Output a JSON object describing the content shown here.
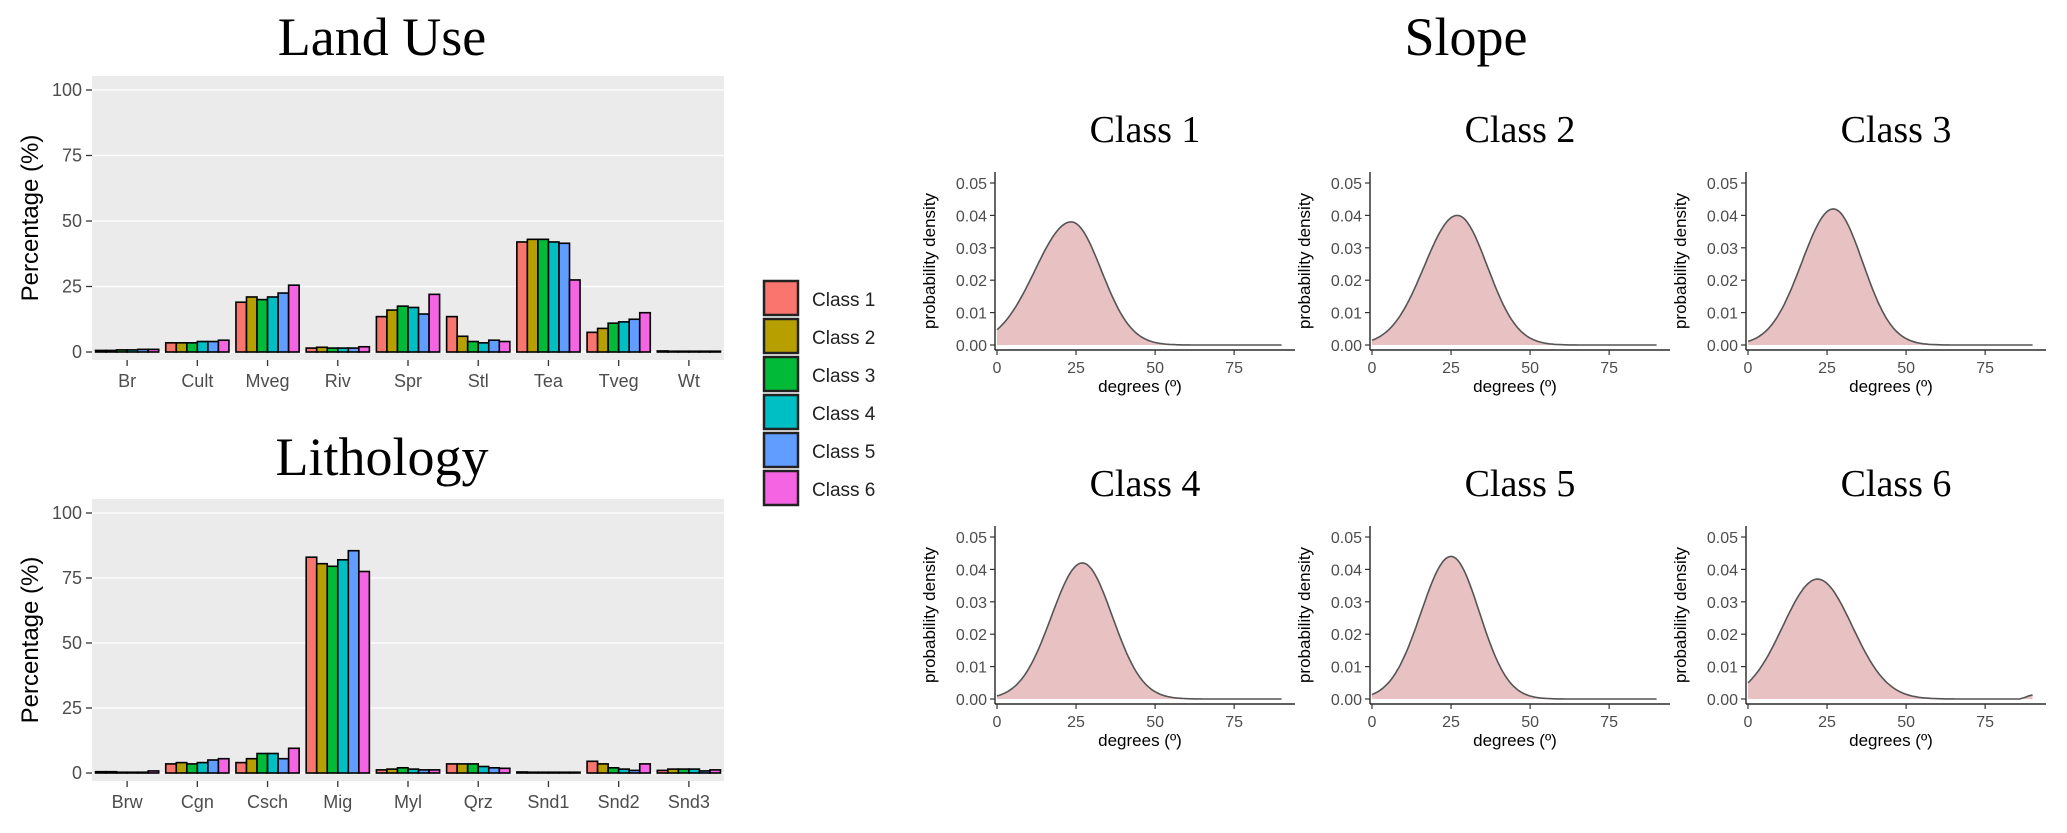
{
  "colors": {
    "panel_bg": "#EBEBEB",
    "bar_outline": "#000000",
    "density_fill": "#E8C2C2",
    "density_line": "#555555",
    "tick_text": "#4D4D4D",
    "class_colors": [
      "#F8766D",
      "#B79F00",
      "#00BA38",
      "#00BFC4",
      "#619CFF",
      "#F564E3"
    ]
  },
  "titles": {
    "land_use": "Land Use",
    "lithology": "Lithology",
    "slope": "Slope"
  },
  "legend": {
    "items": [
      "Class 1",
      "Class 2",
      "Class 3",
      "Class 4",
      "Class 5",
      "Class 6"
    ]
  },
  "chart_data": [
    {
      "id": "land_use",
      "type": "bar",
      "title": "Land Use",
      "xlabel": "",
      "ylabel": "Percentage (%)",
      "ylim": [
        0,
        100
      ],
      "yticks": [
        0,
        25,
        50,
        75,
        100
      ],
      "categories": [
        "Br",
        "Cult",
        "Mveg",
        "Riv",
        "Spr",
        "Stl",
        "Tea",
        "Tveg",
        "Wt"
      ],
      "series": [
        {
          "name": "Class 1",
          "values": [
            0.6,
            3.5,
            19,
            1.5,
            13.5,
            13.5,
            42,
            7.5,
            0.4
          ]
        },
        {
          "name": "Class 2",
          "values": [
            0.6,
            3.5,
            21,
            1.8,
            16,
            6,
            43,
            9,
            0.3
          ]
        },
        {
          "name": "Class 3",
          "values": [
            0.8,
            3.5,
            20,
            1.5,
            17.5,
            4,
            43,
            11,
            0.3
          ]
        },
        {
          "name": "Class 4",
          "values": [
            0.8,
            4,
            21,
            1.5,
            17,
            3.5,
            42,
            11.5,
            0.3
          ]
        },
        {
          "name": "Class 5",
          "values": [
            1,
            4,
            22.5,
            1.5,
            14.5,
            4.5,
            41.5,
            12.5,
            0.3
          ]
        },
        {
          "name": "Class 6",
          "values": [
            1,
            4.5,
            25.5,
            2,
            22,
            4,
            27.5,
            15,
            0.3
          ]
        }
      ]
    },
    {
      "id": "lithology",
      "type": "bar",
      "title": "Lithology",
      "xlabel": "",
      "ylabel": "Percentage (%)",
      "ylim": [
        0,
        100
      ],
      "yticks": [
        0,
        25,
        50,
        75,
        100
      ],
      "categories": [
        "Brw",
        "Cgn",
        "Csch",
        "Mig",
        "Myl",
        "Qrz",
        "Snd1",
        "Snd2",
        "Snd3"
      ],
      "series": [
        {
          "name": "Class 1",
          "values": [
            0.5,
            3.5,
            4,
            83,
            1.2,
            3.5,
            0.4,
            4.5,
            1
          ]
        },
        {
          "name": "Class 2",
          "values": [
            0.5,
            4,
            5.5,
            80.5,
            1.5,
            3.5,
            0.3,
            3.5,
            1.5
          ]
        },
        {
          "name": "Class 3",
          "values": [
            0.3,
            3.5,
            7.5,
            79.5,
            2,
            3.5,
            0.3,
            2,
            1.5
          ]
        },
        {
          "name": "Class 4",
          "values": [
            0.3,
            4,
            7.5,
            82,
            1.5,
            2.5,
            0.3,
            1.5,
            1.5
          ]
        },
        {
          "name": "Class 5",
          "values": [
            0.3,
            5,
            5.5,
            85.5,
            1.2,
            2,
            0.3,
            1,
            0.8
          ]
        },
        {
          "name": "Class 6",
          "values": [
            0.8,
            5.5,
            9.5,
            77.5,
            1.2,
            1.8,
            0.3,
            3.5,
            1.2
          ]
        }
      ]
    },
    {
      "id": "slope",
      "type": "area",
      "title": "Slope",
      "xlabel": "degrees (º)",
      "ylabel": "probability density",
      "xlim": [
        0,
        90
      ],
      "ylim": [
        0,
        0.05
      ],
      "xticks": [
        0,
        25,
        50,
        75
      ],
      "yticks": [
        0,
        0.01,
        0.02,
        0.03,
        0.04,
        0.05
      ],
      "ytick_labels": [
        "0.00",
        "0.01",
        "0.02",
        "0.03",
        "0.04",
        "0.05"
      ],
      "panels": [
        {
          "name": "Class 1",
          "mode": 23.5,
          "peak": 0.038,
          "sd_left": 11.5,
          "sd_right": 9.5,
          "tail_bump": 0
        },
        {
          "name": "Class 2",
          "mode": 27,
          "peak": 0.04,
          "sd_left": 10.5,
          "sd_right": 9.5,
          "tail_bump": 0
        },
        {
          "name": "Class 3",
          "mode": 27,
          "peak": 0.042,
          "sd_left": 10,
          "sd_right": 9.3,
          "tail_bump": 0
        },
        {
          "name": "Class 4",
          "mode": 27,
          "peak": 0.042,
          "sd_left": 9.8,
          "sd_right": 9.5,
          "tail_bump": 0
        },
        {
          "name": "Class 5",
          "mode": 25,
          "peak": 0.044,
          "sd_left": 9.5,
          "sd_right": 9,
          "tail_bump": 0
        },
        {
          "name": "Class 6",
          "mode": 22,
          "peak": 0.037,
          "sd_left": 11,
          "sd_right": 11,
          "tail_bump": 0.0012
        }
      ]
    }
  ]
}
